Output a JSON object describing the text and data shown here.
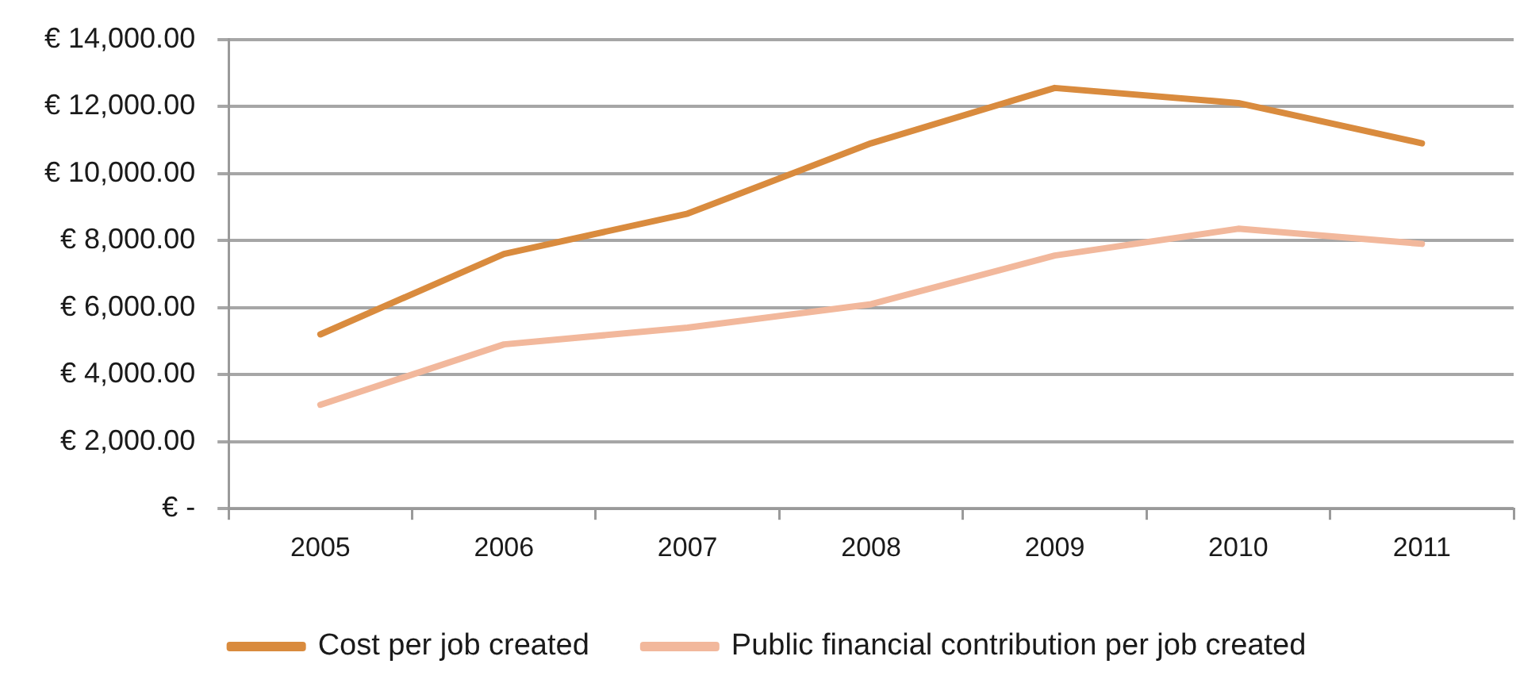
{
  "chart_data": {
    "type": "line",
    "categories": [
      "2005",
      "2006",
      "2007",
      "2008",
      "2009",
      "2010",
      "2011"
    ],
    "series": [
      {
        "name": "Cost per job created",
        "color": "#d98b3e",
        "values": [
          5200,
          7600,
          8800,
          10900,
          12550,
          12100,
          10900
        ]
      },
      {
        "name": "Public financial contribution per job created",
        "color": "#f2b89c",
        "values": [
          3100,
          4900,
          5400,
          6100,
          7550,
          8350,
          7900
        ]
      }
    ],
    "ylim": [
      0,
      14000
    ],
    "yticks": [
      {
        "value": 0,
        "label": "€ -"
      },
      {
        "value": 2000,
        "label": "€ 2,000.00"
      },
      {
        "value": 4000,
        "label": "€ 4,000.00"
      },
      {
        "value": 6000,
        "label": "€ 6,000.00"
      },
      {
        "value": 8000,
        "label": "€ 8,000.00"
      },
      {
        "value": 10000,
        "label": "€ 10,000.00"
      },
      {
        "value": 12000,
        "label": "€ 12,000.00"
      },
      {
        "value": 14000,
        "label": "€ 14,000.00"
      }
    ],
    "grid": "y",
    "legend": "bottom",
    "marker": "none",
    "line_style": "solid"
  }
}
